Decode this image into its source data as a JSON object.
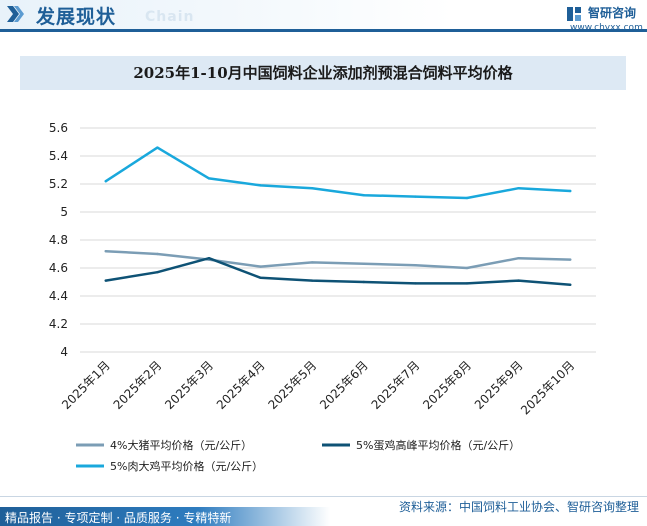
{
  "header": {
    "title": "发展现状",
    "subtitle": "Chain",
    "brand_name": "智研咨询",
    "brand_url": "www.chyxx.com"
  },
  "footer": {
    "source": "资料来源：中国饲料工业协会、智研咨询整理",
    "tagline": "精品报告 · 专项定制 · 品质服务 · 专精特新"
  },
  "colors": {
    "brand": "#1f5f98",
    "series_pig": "#7b9db5",
    "series_egg": "#0e5275",
    "series_broiler": "#19a8dc"
  },
  "chart_data": {
    "type": "line",
    "title": "2025年1-10月中国饲料企业添加剂预混合饲料平均价格",
    "xlabel": "",
    "ylabel": "",
    "categories": [
      "2025年1月",
      "2025年2月",
      "2025年3月",
      "2025年4月",
      "2025年5月",
      "2025年6月",
      "2025年7月",
      "2025年8月",
      "2025年9月",
      "2025年10月"
    ],
    "ylim": [
      4,
      5.6
    ],
    "yticks": [
      4,
      4.2,
      4.4,
      4.6,
      4.8,
      5,
      5.2,
      5.4,
      5.6
    ],
    "ytick_labels": [
      "4",
      "4.2",
      "4.4",
      "4.6",
      "4.8",
      "5",
      "5.2",
      "5.4",
      "5.6"
    ],
    "grid": true,
    "legend_position": "bottom",
    "series": [
      {
        "name": "4%大猪平均价格（元/公斤）",
        "color": "#7b9db5",
        "values": [
          4.72,
          4.7,
          4.66,
          4.61,
          4.64,
          4.63,
          4.62,
          4.6,
          4.67,
          4.66
        ]
      },
      {
        "name": "5%蛋鸡高峰平均价格（元/公斤）",
        "color": "#0e5275",
        "values": [
          4.51,
          4.57,
          4.67,
          4.53,
          4.51,
          4.5,
          4.49,
          4.49,
          4.51,
          4.48
        ]
      },
      {
        "name": "5%肉大鸡平均价格（元/公斤）",
        "color": "#19a8dc",
        "values": [
          5.22,
          5.46,
          5.24,
          5.19,
          5.17,
          5.12,
          5.11,
          5.1,
          5.17,
          5.15
        ]
      }
    ]
  }
}
